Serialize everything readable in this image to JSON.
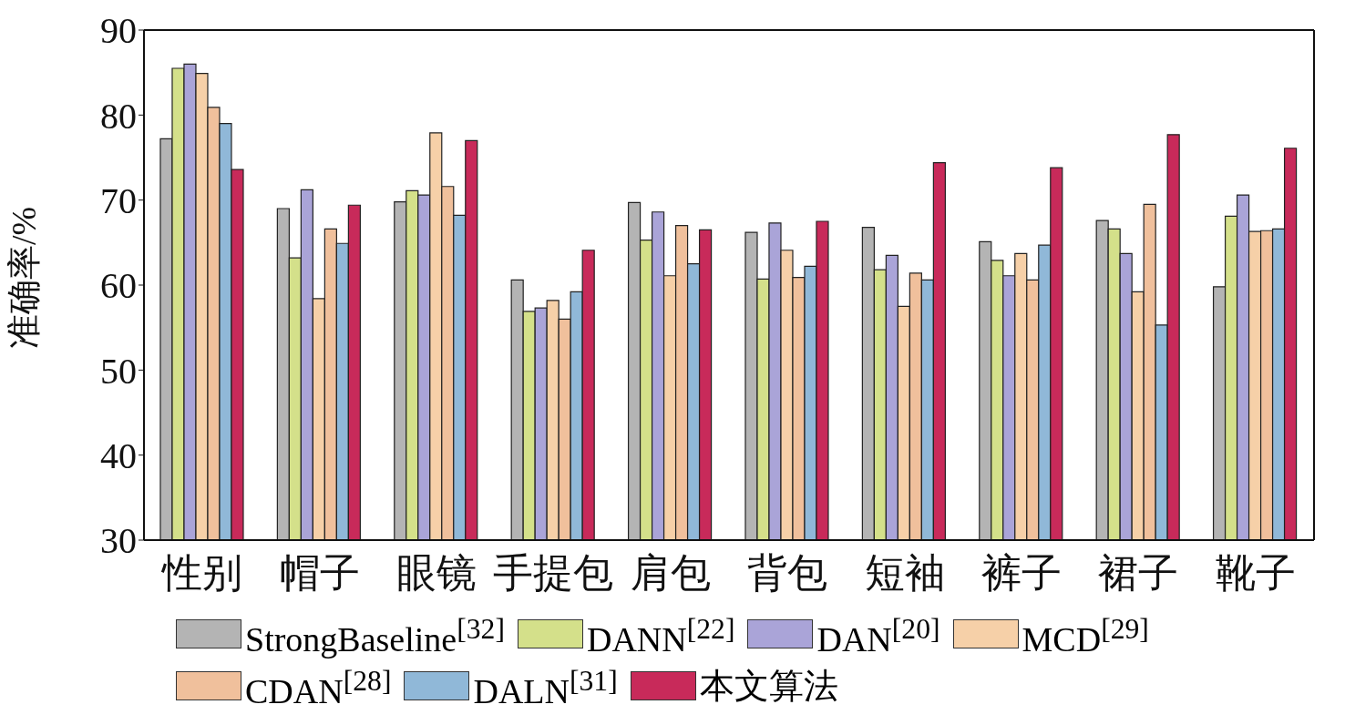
{
  "chart_data": {
    "type": "bar",
    "ylabel": "准确率/%",
    "categories": [
      "性别",
      "帽子",
      "眼镜",
      "手提包",
      "肩包",
      "背包",
      "短袖",
      "裤子",
      "裙子",
      "靴子"
    ],
    "series": [
      {
        "name": "StrongBaseline$^{[32]}$",
        "color": "#b4b4b4",
        "values": [
          77.2,
          69.0,
          69.8,
          60.6,
          69.7,
          66.2,
          66.8,
          65.1,
          67.6,
          59.8
        ]
      },
      {
        "name": "DANN$^{[22]}$",
        "color": "#d4e08a",
        "values": [
          85.5,
          63.2,
          71.1,
          56.9,
          65.3,
          60.7,
          61.8,
          62.9,
          66.6,
          68.1
        ]
      },
      {
        "name": "DAN$^{[20]}$",
        "color": "#aaa4d8",
        "values": [
          86.0,
          71.2,
          70.6,
          57.3,
          68.6,
          67.3,
          63.5,
          61.1,
          63.7,
          70.6
        ]
      },
      {
        "name": "MCD$^{[29]}$",
        "color": "#f6d0a8",
        "values": [
          84.9,
          58.4,
          77.9,
          58.2,
          61.1,
          64.1,
          57.5,
          63.7,
          59.2,
          66.3
        ]
      },
      {
        "name": "CDAN$^{[28]}$",
        "color": "#f0c09c",
        "values": [
          80.9,
          66.6,
          71.6,
          56.0,
          67.0,
          60.9,
          61.4,
          60.6,
          69.5,
          66.4
        ]
      },
      {
        "name": "DALN$^{[31]}$",
        "color": "#90b8d8",
        "values": [
          79.0,
          64.9,
          68.2,
          59.2,
          62.5,
          62.2,
          60.6,
          64.7,
          55.3,
          66.6
        ]
      },
      {
        "name": "本文算法",
        "color": "#c82a5a",
        "values": [
          73.6,
          69.4,
          77.0,
          64.1,
          66.5,
          67.5,
          74.4,
          73.8,
          77.7,
          76.1
        ]
      }
    ],
    "ylim": [
      30,
      90
    ],
    "yticks": [
      30,
      40,
      50,
      60,
      70,
      80,
      90
    ],
    "legend": "bottom"
  }
}
